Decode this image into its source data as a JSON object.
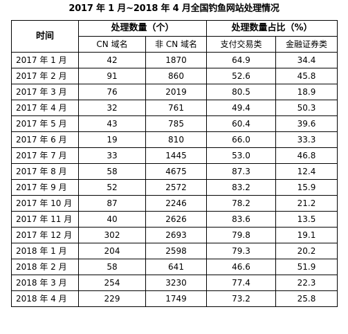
{
  "title": "2017 年 1 月~2018 年 4 月全国钓鱼网站处理情况",
  "headers": {
    "time": "时间",
    "count_group": "处理数量（个）",
    "share_group": "处理数量占比（%）",
    "cn_domain": "CN 域名",
    "non_cn_domain": "非 CN 域名",
    "payment": "支付交易类",
    "finance": "金融证券类"
  },
  "rows": [
    {
      "month": "2017 年 1 月",
      "cn": "42",
      "non_cn": "1870",
      "payment": "64.9",
      "finance": "34.4"
    },
    {
      "month": "2017 年 2 月",
      "cn": "91",
      "non_cn": "860",
      "payment": "52.6",
      "finance": "45.8"
    },
    {
      "month": "2017 年 3 月",
      "cn": "76",
      "non_cn": "2019",
      "payment": "80.5",
      "finance": "18.9"
    },
    {
      "month": "2017 年 4 月",
      "cn": "32",
      "non_cn": "761",
      "payment": "49.4",
      "finance": "50.3"
    },
    {
      "month": "2017 年 5 月",
      "cn": "43",
      "non_cn": "785",
      "payment": "60.4",
      "finance": "39.6"
    },
    {
      "month": "2017 年 6 月",
      "cn": "19",
      "non_cn": "810",
      "payment": "66.0",
      "finance": "33.3"
    },
    {
      "month": "2017 年 7 月",
      "cn": "33",
      "non_cn": "1445",
      "payment": "53.0",
      "finance": "46.8"
    },
    {
      "month": "2017 年 8 月",
      "cn": "58",
      "non_cn": "4675",
      "payment": "87.3",
      "finance": "12.4"
    },
    {
      "month": "2017 年 9 月",
      "cn": "52",
      "non_cn": "2572",
      "payment": "83.2",
      "finance": "15.9"
    },
    {
      "month": "2017 年 10 月",
      "cn": "87",
      "non_cn": "2246",
      "payment": "78.2",
      "finance": "21.2"
    },
    {
      "month": "2017 年 11 月",
      "cn": "40",
      "non_cn": "2626",
      "payment": "83.6",
      "finance": "13.5"
    },
    {
      "month": "2017 年 12 月",
      "cn": "302",
      "non_cn": "2693",
      "payment": "79.8",
      "finance": "19.1"
    },
    {
      "month": "2018 年 1 月",
      "cn": "204",
      "non_cn": "2598",
      "payment": "79.3",
      "finance": "20.2"
    },
    {
      "month": "2018 年 2 月",
      "cn": "58",
      "non_cn": "641",
      "payment": "46.6",
      "finance": "51.9"
    },
    {
      "month": "2018 年 3 月",
      "cn": "254",
      "non_cn": "3230",
      "payment": "77.4",
      "finance": "22.3"
    },
    {
      "month": "2018 年 4 月",
      "cn": "229",
      "non_cn": "1749",
      "payment": "73.2",
      "finance": "25.8"
    }
  ]
}
